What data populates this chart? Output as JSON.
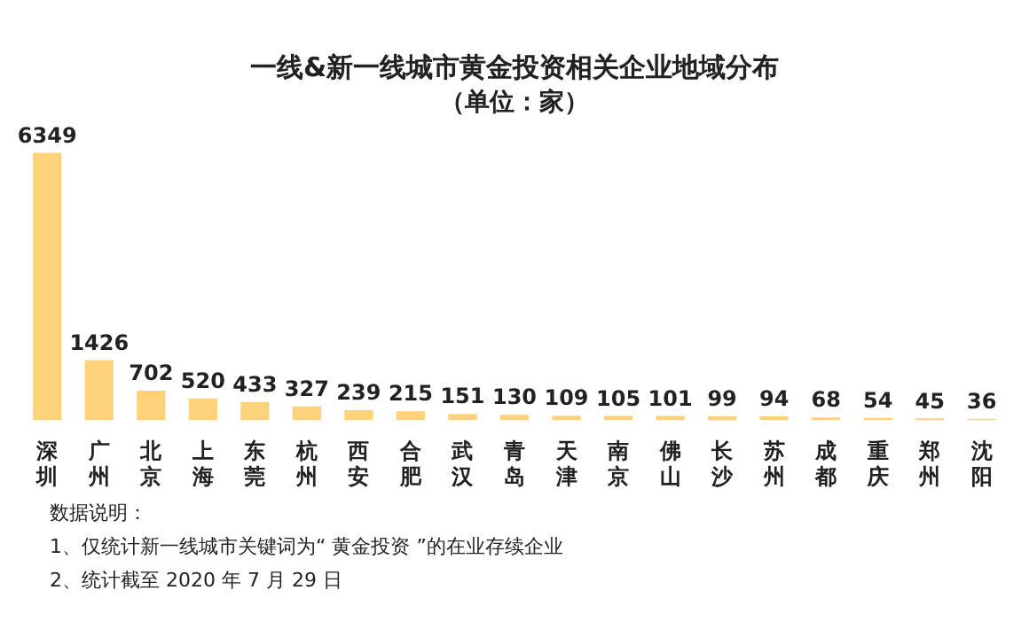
{
  "chart_data": {
    "type": "bar",
    "title": "一线&新一线城市黄金投资相关企业地域分布",
    "subtitle": "（单位：家）",
    "categories": [
      "深圳",
      "广州",
      "北京",
      "上海",
      "东莞",
      "杭州",
      "西安",
      "合肥",
      "武汉",
      "青岛",
      "天津",
      "南京",
      "佛山",
      "长沙",
      "苏州",
      "成都",
      "重庆",
      "郑州",
      "沈阳"
    ],
    "values": [
      6349,
      1426,
      702,
      520,
      433,
      327,
      239,
      215,
      151,
      130,
      109,
      105,
      101,
      99,
      94,
      68,
      54,
      45,
      36
    ],
    "color": "#fdd27a",
    "data_labels": true,
    "grid": false,
    "legend": false,
    "annotations": [
      "数据说明：",
      "1、仅统计新一线城市关键词为“ 黄金投资 ”的在业存续企业",
      "2、统计截至 2020 年 7 月 29 日"
    ]
  }
}
